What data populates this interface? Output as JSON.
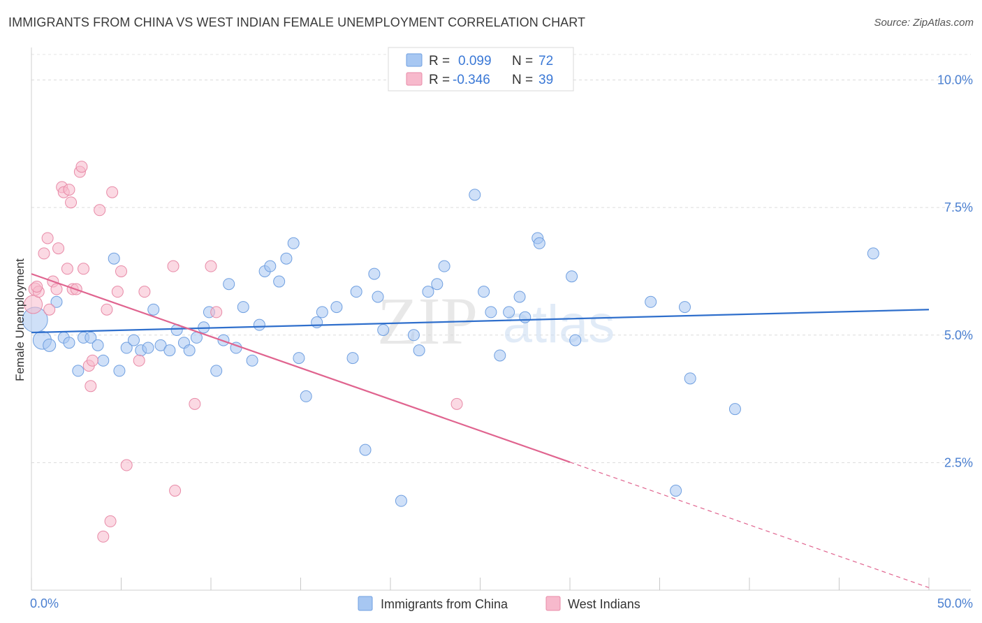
{
  "header": {
    "title": "IMMIGRANTS FROM CHINA VS WEST INDIAN FEMALE UNEMPLOYMENT CORRELATION CHART",
    "source": "Source: ZipAtlas.com"
  },
  "watermark": {
    "zip": "ZIP",
    "atlas": "atlas"
  },
  "legend": {
    "r_label": "R =",
    "n_label": "N =",
    "entries": [
      {
        "name": "Immigrants from China",
        "r": "0.099",
        "n": "72",
        "color": "#a7c7f2",
        "stroke": "#6f9fe0"
      },
      {
        "name": "West Indians",
        "r": "-0.346",
        "n": "39",
        "color": "#f7b9cc",
        "stroke": "#e88aa7"
      }
    ]
  },
  "chart_data": {
    "type": "scatter",
    "title": "IMMIGRANTS FROM CHINA VS WEST INDIAN FEMALE UNEMPLOYMENT CORRELATION CHART",
    "xlabel": "",
    "ylabel": "Female Unemployment",
    "xlim": [
      0,
      50
    ],
    "ylim": [
      0,
      10.5
    ],
    "x_tick_labels": [
      "0.0%",
      "50.0%"
    ],
    "y_ticks": [
      2.5,
      5.0,
      7.5,
      10.0
    ],
    "y_tick_labels": [
      "2.5%",
      "5.0%",
      "7.5%",
      "10.0%"
    ],
    "series": [
      {
        "name": "Immigrants from China",
        "color": "#a7c7f2",
        "stroke": "#6f9fe0",
        "trend": {
          "x0": 0,
          "y0": 5.05,
          "x1": 50,
          "y1": 5.5,
          "color": "#2f6fcc",
          "dashed_from": null
        },
        "points": [
          [
            0.2,
            5.3,
            18
          ],
          [
            0.6,
            4.9,
            13
          ],
          [
            1.0,
            4.8,
            9
          ],
          [
            1.4,
            5.65,
            8
          ],
          [
            1.8,
            4.95,
            8
          ],
          [
            2.1,
            4.85,
            8
          ],
          [
            2.6,
            4.3,
            8
          ],
          [
            2.9,
            4.95,
            8
          ],
          [
            3.3,
            4.95,
            8
          ],
          [
            3.7,
            4.8,
            8
          ],
          [
            4.0,
            4.5,
            8
          ],
          [
            4.6,
            6.5,
            8
          ],
          [
            4.9,
            4.3,
            8
          ],
          [
            5.3,
            4.75,
            8
          ],
          [
            5.7,
            4.9,
            8
          ],
          [
            6.1,
            4.7,
            8
          ],
          [
            6.5,
            4.75,
            8
          ],
          [
            6.8,
            5.5,
            8
          ],
          [
            7.2,
            4.8,
            8
          ],
          [
            7.7,
            4.7,
            8
          ],
          [
            8.1,
            5.1,
            8
          ],
          [
            8.5,
            4.85,
            8
          ],
          [
            8.8,
            4.7,
            8
          ],
          [
            9.2,
            4.95,
            8
          ],
          [
            9.6,
            5.15,
            8
          ],
          [
            9.9,
            5.45,
            8
          ],
          [
            10.3,
            4.3,
            8
          ],
          [
            10.7,
            4.9,
            8
          ],
          [
            11.0,
            6.0,
            8
          ],
          [
            11.4,
            4.75,
            8
          ],
          [
            11.8,
            5.55,
            8
          ],
          [
            12.3,
            4.5,
            8
          ],
          [
            12.7,
            5.2,
            8
          ],
          [
            13.0,
            6.25,
            8
          ],
          [
            13.3,
            6.35,
            8
          ],
          [
            13.8,
            6.05,
            8
          ],
          [
            14.2,
            6.5,
            8
          ],
          [
            14.6,
            6.8,
            8
          ],
          [
            14.9,
            4.55,
            8
          ],
          [
            15.3,
            3.8,
            8
          ],
          [
            15.9,
            5.25,
            8
          ],
          [
            16.2,
            5.45,
            8
          ],
          [
            17.0,
            5.55,
            8
          ],
          [
            17.9,
            4.55,
            8
          ],
          [
            18.1,
            5.85,
            8
          ],
          [
            18.6,
            2.75,
            8
          ],
          [
            19.1,
            6.2,
            8
          ],
          [
            19.3,
            5.75,
            8
          ],
          [
            19.6,
            5.1,
            8
          ],
          [
            20.6,
            1.75,
            8
          ],
          [
            21.3,
            5.0,
            8
          ],
          [
            21.6,
            4.7,
            8
          ],
          [
            22.1,
            5.85,
            8
          ],
          [
            22.6,
            6.0,
            8
          ],
          [
            23.0,
            6.35,
            8
          ],
          [
            24.7,
            7.75,
            8
          ],
          [
            25.2,
            5.85,
            8
          ],
          [
            25.6,
            5.45,
            8
          ],
          [
            26.1,
            4.6,
            8
          ],
          [
            26.6,
            5.45,
            8
          ],
          [
            27.2,
            5.75,
            8
          ],
          [
            27.5,
            5.35,
            8
          ],
          [
            28.2,
            6.9,
            8
          ],
          [
            28.3,
            6.8,
            8
          ],
          [
            30.1,
            6.15,
            8
          ],
          [
            30.3,
            4.9,
            8
          ],
          [
            34.5,
            5.65,
            8
          ],
          [
            36.4,
            5.55,
            8
          ],
          [
            36.7,
            4.15,
            8
          ],
          [
            39.2,
            3.55,
            8
          ],
          [
            35.9,
            1.95,
            8
          ],
          [
            46.9,
            6.6,
            8
          ]
        ]
      },
      {
        "name": "West Indians",
        "color": "#f7b9cc",
        "stroke": "#e88aa7",
        "trend": {
          "x0": 0,
          "y0": 6.2,
          "x1": 50,
          "y1": 0.05,
          "color": "#e0648f",
          "dashed_from": 30
        },
        "points": [
          [
            0.1,
            5.6,
            13
          ],
          [
            0.2,
            5.9,
            9
          ],
          [
            0.4,
            5.85,
            8
          ],
          [
            0.7,
            6.6,
            8
          ],
          [
            0.9,
            6.9,
            8
          ],
          [
            1.0,
            5.5,
            8
          ],
          [
            1.2,
            6.05,
            8
          ],
          [
            1.5,
            6.7,
            8
          ],
          [
            1.7,
            7.9,
            8
          ],
          [
            1.8,
            7.8,
            8
          ],
          [
            2.1,
            7.85,
            8
          ],
          [
            2.2,
            7.6,
            8
          ],
          [
            2.3,
            5.9,
            8
          ],
          [
            2.5,
            5.9,
            8
          ],
          [
            2.7,
            8.2,
            8
          ],
          [
            2.8,
            8.3,
            8
          ],
          [
            2.9,
            6.3,
            8
          ],
          [
            3.2,
            4.4,
            8
          ],
          [
            3.3,
            4.0,
            8
          ],
          [
            3.4,
            4.5,
            8
          ],
          [
            3.8,
            7.45,
            8
          ],
          [
            4.0,
            1.05,
            8
          ],
          [
            4.2,
            5.5,
            8
          ],
          [
            4.4,
            1.35,
            8
          ],
          [
            4.5,
            7.8,
            8
          ],
          [
            4.8,
            5.85,
            8
          ],
          [
            5.0,
            6.25,
            8
          ],
          [
            5.3,
            2.45,
            8
          ],
          [
            6.0,
            4.5,
            8
          ],
          [
            6.3,
            5.85,
            8
          ],
          [
            7.9,
            6.35,
            8
          ],
          [
            8.0,
            1.95,
            8
          ],
          [
            9.1,
            3.65,
            8
          ],
          [
            10.0,
            6.35,
            8
          ],
          [
            10.3,
            5.45,
            8
          ],
          [
            23.7,
            3.65,
            8
          ],
          [
            0.3,
            5.95,
            8
          ],
          [
            1.4,
            5.9,
            8
          ],
          [
            2.0,
            6.3,
            8
          ]
        ]
      }
    ]
  }
}
